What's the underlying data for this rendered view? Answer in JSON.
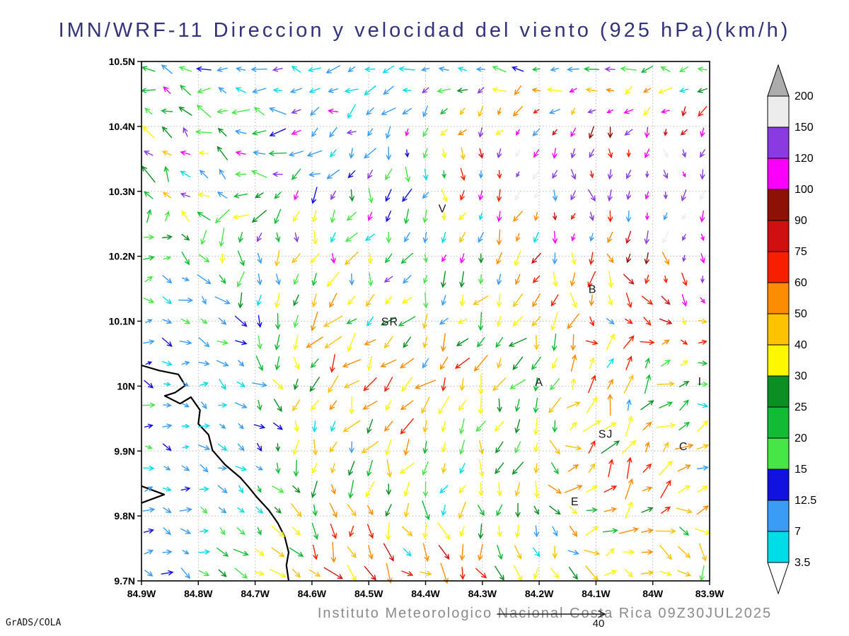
{
  "footer": {
    "institute": "Instituto Meteorologico Nacional Costa Rica 09Z30JUL2025",
    "credit": "GrADS/COLA",
    "ref_label": "40"
  },
  "chart_data": {
    "type": "vector_field",
    "subtype": "wind_direction_and_speed",
    "title": "IMN/WRF-11 Direccion y velocidad del viento (925 hPa)(km/h)",
    "level": "925 hPa",
    "units": "km/h",
    "xlabel": "",
    "ylabel": "",
    "grid": "dotted",
    "lon_range_w": [
      84.9,
      83.9
    ],
    "lat_range_n": [
      9.7,
      10.5
    ],
    "x_ticks": [
      "84.9W",
      "84.8W",
      "84.7W",
      "84.6W",
      "84.5W",
      "84.4W",
      "84.3W",
      "84.2W",
      "84.1W",
      "84W",
      "83.9W"
    ],
    "y_ticks": [
      "9.7N",
      "9.8N",
      "9.9N",
      "10N",
      "10.1N",
      "10.2N",
      "10.3N",
      "10.4N",
      "10.5N"
    ],
    "colorbar": {
      "levels": [
        3.5,
        7,
        12.5,
        15,
        20,
        25,
        30,
        40,
        50,
        60,
        75,
        90,
        100,
        120,
        150,
        200
      ],
      "colors": [
        "#00dde8",
        "#3a9cf5",
        "#1212e0",
        "#45e645",
        "#11bb33",
        "#0b8f22",
        "#fdf800",
        "#fdc200",
        "#fd8d00",
        "#f81e00",
        "#d01010",
        "#8d1205",
        "#fa00fa",
        "#8a3ae0",
        "#ececec"
      ],
      "over_color": "#acacac",
      "under_color": "#ffffff"
    },
    "reference_vector": {
      "value": 40
    },
    "stations": [
      {
        "label": "V",
        "lon_w": 84.37,
        "lat_n": 10.273
      },
      {
        "label": "B",
        "lon_w": 84.106,
        "lat_n": 10.149
      },
      {
        "label": "SR",
        "lon_w": 84.463,
        "lat_n": 10.099
      },
      {
        "label": "A",
        "lon_w": 84.2,
        "lat_n": 10.006
      },
      {
        "label": "SJ",
        "lon_w": 84.083,
        "lat_n": 9.926
      },
      {
        "label": "C",
        "lon_w": 83.946,
        "lat_n": 9.907
      },
      {
        "label": "E",
        "lon_w": 84.137,
        "lat_n": 9.822
      },
      {
        "label": "I",
        "lon_w": 83.917,
        "lat_n": 10.007
      }
    ],
    "coastline": [
      [
        84.9,
        10.032
      ],
      [
        84.869,
        10.024
      ],
      [
        84.835,
        10.018
      ],
      [
        84.823,
        10.001
      ],
      [
        84.841,
        9.99
      ],
      [
        84.859,
        9.985
      ],
      [
        84.832,
        9.973
      ],
      [
        84.813,
        9.983
      ],
      [
        84.797,
        9.963
      ],
      [
        84.8,
        9.942
      ],
      [
        84.782,
        9.925
      ],
      [
        84.775,
        9.901
      ],
      [
        84.753,
        9.879
      ],
      [
        84.726,
        9.859
      ],
      [
        84.711,
        9.844
      ],
      [
        84.698,
        9.83
      ],
      [
        84.676,
        9.809
      ],
      [
        84.66,
        9.789
      ],
      [
        84.648,
        9.768
      ],
      [
        84.641,
        9.744
      ],
      [
        84.645,
        9.724
      ],
      [
        84.641,
        9.7
      ]
    ],
    "coast_inlet": [
      [
        84.9,
        9.846
      ],
      [
        84.86,
        9.833
      ],
      [
        84.9,
        9.82
      ]
    ],
    "flow_field": {
      "seed": 11,
      "cols": 31,
      "rows": 25,
      "control_format": [
        "angle_deg_screen",
        "length_px",
        "speed_kmh"
      ],
      "control": [
        [
          [
            195,
            17,
            20
          ],
          [
            185,
            16,
            5
          ],
          [
            180,
            16,
            5
          ],
          [
            180,
            15,
            5
          ],
          [
            175,
            15,
            5
          ],
          [
            180,
            15,
            5
          ],
          [
            185,
            15,
            5
          ]
        ],
        [
          [
            230,
            20,
            35
          ],
          [
            215,
            20,
            22
          ],
          [
            130,
            15,
            10
          ],
          [
            95,
            14,
            12
          ],
          [
            100,
            11,
            130
          ],
          [
            90,
            11,
            110
          ],
          [
            85,
            11,
            130
          ]
        ],
        [
          [
            350,
            12,
            10
          ],
          [
            85,
            18,
            22
          ],
          [
            105,
            19,
            35
          ],
          [
            115,
            15,
            12
          ],
          [
            125,
            17,
            45
          ],
          [
            75,
            16,
            45
          ],
          [
            100,
            11,
            130
          ]
        ],
        [
          [
            5,
            12,
            10
          ],
          [
            25,
            13,
            5
          ],
          [
            135,
            21,
            45
          ],
          [
            130,
            23,
            55
          ],
          [
            120,
            19,
            22
          ],
          [
            295,
            21,
            45
          ],
          [
            355,
            13,
            10
          ]
        ],
        [
          [
            0,
            11,
            10
          ],
          [
            30,
            12,
            5
          ],
          [
            100,
            17,
            35
          ],
          [
            115,
            19,
            22
          ],
          [
            95,
            17,
            27
          ],
          [
            300,
            21,
            45
          ],
          [
            330,
            19,
            45
          ]
        ],
        [
          [
            10,
            12,
            10
          ],
          [
            35,
            16,
            22
          ],
          [
            55,
            21,
            55
          ],
          [
            35,
            22,
            65
          ],
          [
            85,
            19,
            27
          ],
          [
            5,
            19,
            45
          ],
          [
            75,
            17,
            27
          ]
        ]
      ]
    }
  }
}
